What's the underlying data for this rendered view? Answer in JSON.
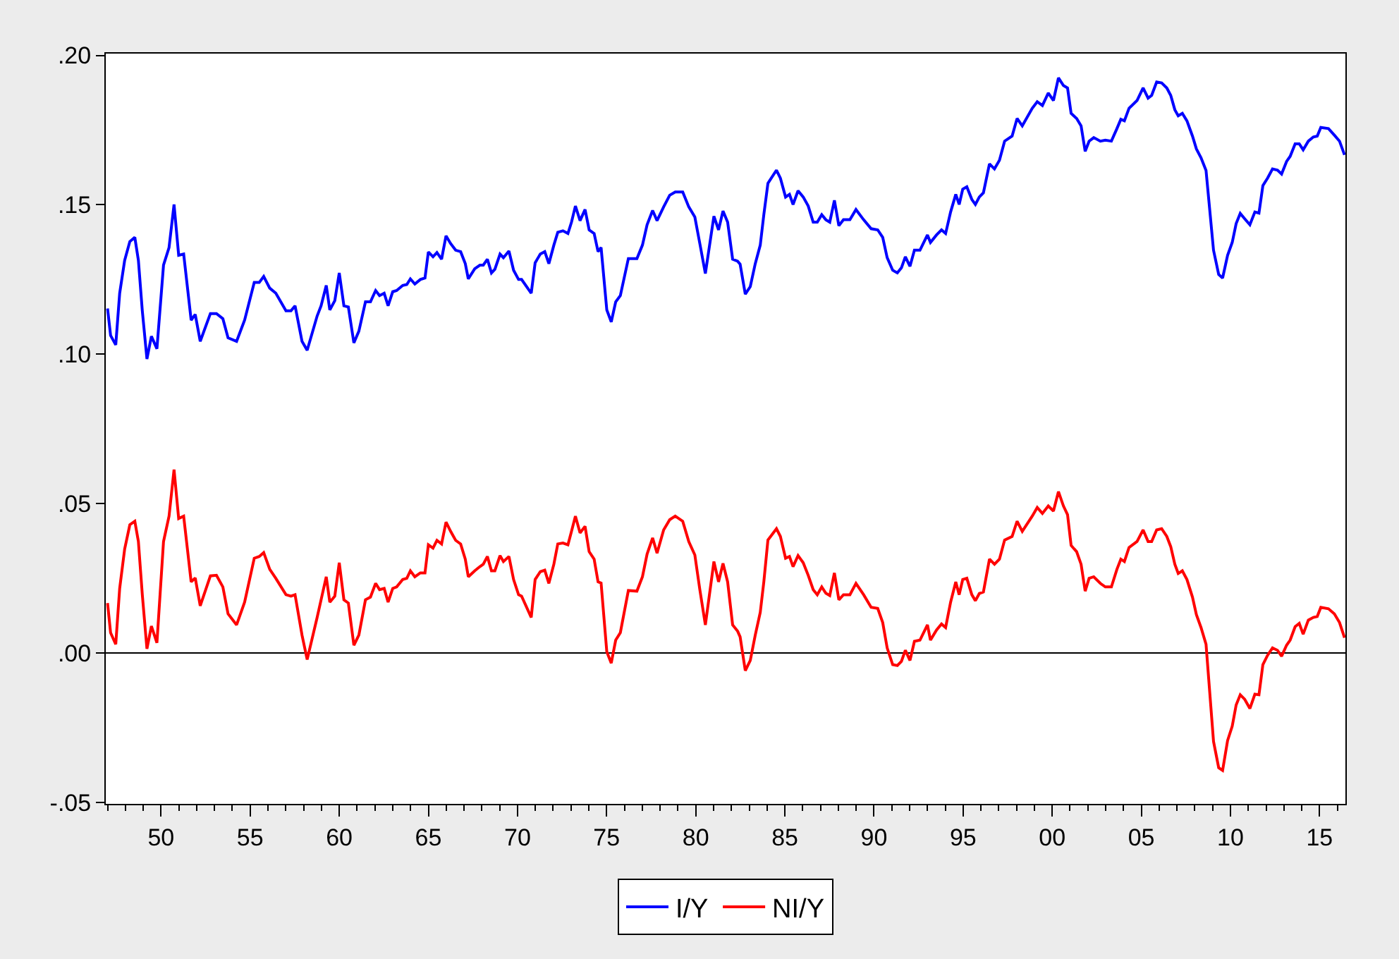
{
  "chart_data": {
    "type": "line",
    "legend": "bottom",
    "grid": false,
    "marker": "none",
    "line_style": "solid",
    "xlim": [
      1946.9,
      2016.45
    ],
    "xticks": [
      {
        "value": 1950,
        "label": "50"
      },
      {
        "value": 1955,
        "label": "55"
      },
      {
        "value": 1960,
        "label": "60"
      },
      {
        "value": 1965,
        "label": "65"
      },
      {
        "value": 1970,
        "label": "70"
      },
      {
        "value": 1975,
        "label": "75"
      },
      {
        "value": 1980,
        "label": "80"
      },
      {
        "value": 1985,
        "label": "85"
      },
      {
        "value": 1990,
        "label": "90"
      },
      {
        "value": 1995,
        "label": "95"
      },
      {
        "value": 2000,
        "label": "00"
      },
      {
        "value": 2005,
        "label": "05"
      },
      {
        "value": 2010,
        "label": "10"
      },
      {
        "value": 2015,
        "label": "15"
      }
    ],
    "ylim": [
      -0.0505,
      0.2006
    ],
    "yticks": [
      {
        "value": -0.05,
        "label": "-.05"
      },
      {
        "value": 0,
        "label": ".00"
      },
      {
        "value": 0.05,
        "label": ".05"
      },
      {
        "value": 0.1,
        "label": ".10"
      },
      {
        "value": 0.15,
        "label": ".15"
      },
      {
        "value": 0.2,
        "label": ".20"
      }
    ],
    "ref_lines": [
      {
        "axis": "y",
        "value": 0,
        "color": "#000000"
      }
    ],
    "x": [
      1947.0,
      1947.17,
      1947.46,
      1947.68,
      1947.96,
      1948.25,
      1948.53,
      1948.73,
      1948.95,
      1949.21,
      1949.46,
      1949.77,
      1950.14,
      1950.45,
      1950.73,
      1950.99,
      1951.27,
      1951.69,
      1951.92,
      1952.2,
      1952.77,
      1953.11,
      1953.47,
      1953.76,
      1954.24,
      1954.69,
      1955.23,
      1955.51,
      1955.76,
      1956.1,
      1956.44,
      1957.01,
      1957.29,
      1957.52,
      1957.91,
      1958.2,
      1958.76,
      1958.98,
      1959.27,
      1959.47,
      1959.75,
      1960.0,
      1960.26,
      1960.51,
      1960.82,
      1961.1,
      1961.47,
      1961.75,
      1962.04,
      1962.26,
      1962.52,
      1962.74,
      1963.0,
      1963.22,
      1963.56,
      1963.79,
      1963.99,
      1964.24,
      1964.55,
      1964.81,
      1965.0,
      1965.26,
      1965.48,
      1965.74,
      1965.99,
      1966.25,
      1966.53,
      1966.81,
      1967.07,
      1967.24,
      1967.6,
      1967.89,
      1968.08,
      1968.31,
      1968.54,
      1968.73,
      1969.02,
      1969.21,
      1969.52,
      1969.78,
      1970.06,
      1970.23,
      1970.77,
      1970.99,
      1971.28,
      1971.53,
      1971.76,
      1972.04,
      1972.26,
      1972.55,
      1972.83,
      1973.03,
      1973.25,
      1973.51,
      1973.79,
      1974.02,
      1974.3,
      1974.52,
      1974.69,
      1975.01,
      1975.26,
      1975.51,
      1975.77,
      1976.22,
      1976.7,
      1977.01,
      1977.27,
      1977.58,
      1977.83,
      1978.2,
      1978.54,
      1978.85,
      1979.27,
      1979.61,
      1979.95,
      1980.23,
      1980.54,
      1981.02,
      1981.28,
      1981.53,
      1981.79,
      1982.07,
      1982.35,
      1982.49,
      1982.78,
      1983.06,
      1983.34,
      1983.62,
      1983.82,
      1984.05,
      1984.53,
      1984.75,
      1985.04,
      1985.26,
      1985.46,
      1985.74,
      1986.03,
      1986.31,
      1986.59,
      1986.82,
      1987.07,
      1987.3,
      1987.52,
      1987.78,
      1988.03,
      1988.29,
      1988.65,
      1988.99,
      1989.42,
      1989.84,
      1990.21,
      1990.49,
      1990.74,
      1991.05,
      1991.31,
      1991.54,
      1991.76,
      1992.02,
      1992.27,
      1992.58,
      1993.0,
      1993.17,
      1993.51,
      1993.79,
      1994.02,
      1994.3,
      1994.59,
      1994.78,
      1994.98,
      1995.21,
      1995.49,
      1995.69,
      1995.91,
      1996.14,
      1996.48,
      1996.76,
      1997.04,
      1997.33,
      1997.75,
      1998.03,
      1998.32,
      1998.88,
      1999.16,
      1999.45,
      1999.78,
      2000.07,
      2000.35,
      2000.63,
      2000.86,
      2001.06,
      2001.37,
      2001.62,
      2001.85,
      2002.07,
      2002.33,
      2002.7,
      2002.98,
      2003.32,
      2003.63,
      2003.85,
      2004.05,
      2004.31,
      2004.76,
      2005.1,
      2005.38,
      2005.58,
      2005.86,
      2006.14,
      2006.43,
      2006.65,
      2006.88,
      2007.07,
      2007.3,
      2007.56,
      2007.87,
      2008.09,
      2008.35,
      2008.63,
      2009.05,
      2009.34,
      2009.56,
      2009.84,
      2010.1,
      2010.32,
      2010.55,
      2010.8,
      2011.09,
      2011.37,
      2011.6,
      2011.82,
      2012.08,
      2012.36,
      2012.64,
      2012.87,
      2013.15,
      2013.35,
      2013.63,
      2013.86,
      2014.08,
      2014.37,
      2014.65,
      2014.87,
      2015.07,
      2015.5,
      2015.83,
      2016.12,
      2016.4
    ],
    "series": [
      {
        "name": "I/Y",
        "color": "#0000ff",
        "values": [
          0.1153,
          0.1063,
          0.1031,
          0.1204,
          0.1314,
          0.1377,
          0.1391,
          0.1314,
          0.1145,
          0.0984,
          0.106,
          0.1018,
          0.1298,
          0.1357,
          0.1501,
          0.1331,
          0.1335,
          0.1114,
          0.1133,
          0.1043,
          0.1136,
          0.1136,
          0.1119,
          0.1055,
          0.1043,
          0.1114,
          0.124,
          0.124,
          0.126,
          0.1221,
          0.1204,
          0.1145,
          0.1145,
          0.1162,
          0.1043,
          0.1013,
          0.1128,
          0.1162,
          0.123,
          0.1148,
          0.1179,
          0.1272,
          0.1162,
          0.1158,
          0.1038,
          0.1077,
          0.1175,
          0.1175,
          0.1213,
          0.1196,
          0.1204,
          0.1162,
          0.1209,
          0.1213,
          0.123,
          0.1233,
          0.1252,
          0.1235,
          0.125,
          0.1255,
          0.1342,
          0.1326,
          0.134,
          0.1318,
          0.1396,
          0.137,
          0.1348,
          0.1343,
          0.1303,
          0.1252,
          0.1286,
          0.1298,
          0.1298,
          0.1318,
          0.1272,
          0.1284,
          0.1335,
          0.1323,
          0.1345,
          0.1281,
          0.125,
          0.125,
          0.1204,
          0.1306,
          0.1335,
          0.1343,
          0.1303,
          0.1365,
          0.1408,
          0.1413,
          0.1404,
          0.1442,
          0.1496,
          0.1447,
          0.1484,
          0.1416,
          0.1404,
          0.1343,
          0.1357,
          0.1148,
          0.1108,
          0.1175,
          0.1196,
          0.132,
          0.132,
          0.1365,
          0.1433,
          0.1481,
          0.1447,
          0.1493,
          0.1532,
          0.1543,
          0.1543,
          0.1493,
          0.1459,
          0.137,
          0.127,
          0.1462,
          0.1416,
          0.1479,
          0.1442,
          0.1318,
          0.1311,
          0.1301,
          0.1201,
          0.1226,
          0.1303,
          0.1365,
          0.1467,
          0.1572,
          0.1616,
          0.1589,
          0.1526,
          0.1535,
          0.1501,
          0.1547,
          0.1526,
          0.1496,
          0.1442,
          0.1442,
          0.1467,
          0.145,
          0.1442,
          0.1515,
          0.143,
          0.145,
          0.145,
          0.1484,
          0.145,
          0.142,
          0.1416,
          0.1391,
          0.1323,
          0.1281,
          0.1272,
          0.1289,
          0.1326,
          0.1294,
          0.1348,
          0.1348,
          0.1399,
          0.1374,
          0.1399,
          0.1416,
          0.1404,
          0.1476,
          0.1535,
          0.1501,
          0.1552,
          0.156,
          0.1518,
          0.1501,
          0.1526,
          0.154,
          0.1637,
          0.162,
          0.1649,
          0.1713,
          0.173,
          0.1789,
          0.1764,
          0.1823,
          0.1845,
          0.1832,
          0.1874,
          0.1849,
          0.1925,
          0.1899,
          0.1891,
          0.1806,
          0.1789,
          0.1764,
          0.1679,
          0.1713,
          0.1725,
          0.1713,
          0.1716,
          0.1713,
          0.1755,
          0.1786,
          0.1781,
          0.1823,
          0.1849,
          0.1891,
          0.1857,
          0.1866,
          0.1911,
          0.1908,
          0.1891,
          0.1866,
          0.1818,
          0.1798,
          0.1806,
          0.1781,
          0.173,
          0.1687,
          0.1657,
          0.1615,
          0.1348,
          0.1267,
          0.1255,
          0.1331,
          0.1374,
          0.1437,
          0.1471,
          0.1453,
          0.1433,
          0.1476,
          0.1472,
          0.1564,
          0.1589,
          0.162,
          0.1616,
          0.1603,
          0.1645,
          0.1662,
          0.1704,
          0.1704,
          0.1684,
          0.1713,
          0.1727,
          0.173,
          0.1759,
          0.1755,
          0.1733,
          0.1713,
          0.1667
        ]
      },
      {
        "name": "NI/Y",
        "color": "#ff0000",
        "values": [
          0.0167,
          0.0068,
          0.0029,
          0.0216,
          0.0348,
          0.0429,
          0.0441,
          0.0373,
          0.0195,
          0.0014,
          0.009,
          0.0034,
          0.0373,
          0.0458,
          0.0614,
          0.045,
          0.0458,
          0.0238,
          0.0251,
          0.0158,
          0.0258,
          0.026,
          0.0221,
          0.0131,
          0.0094,
          0.017,
          0.0317,
          0.0323,
          0.0336,
          0.028,
          0.025,
          0.0195,
          0.019,
          0.0195,
          0.006,
          -0.0022,
          0.0119,
          0.0178,
          0.0255,
          0.017,
          0.019,
          0.0302,
          0.0178,
          0.0167,
          0.0026,
          0.006,
          0.0178,
          0.0187,
          0.0233,
          0.0212,
          0.0216,
          0.017,
          0.0216,
          0.0221,
          0.0246,
          0.025,
          0.0275,
          0.0255,
          0.0268,
          0.0268,
          0.0362,
          0.0351,
          0.0377,
          0.0365,
          0.0438,
          0.0407,
          0.0377,
          0.0365,
          0.0314,
          0.0255,
          0.0275,
          0.0289,
          0.0297,
          0.0323,
          0.0275,
          0.0275,
          0.0326,
          0.0306,
          0.0323,
          0.0246,
          0.0195,
          0.019,
          0.0119,
          0.0246,
          0.0272,
          0.0277,
          0.0233,
          0.0297,
          0.0365,
          0.0368,
          0.0362,
          0.0407,
          0.0458,
          0.0402,
          0.0424,
          0.0339,
          0.0314,
          0.0238,
          0.0234,
          0.0004,
          -0.0034,
          0.0043,
          0.0068,
          0.0209,
          0.0207,
          0.0255,
          0.0331,
          0.0385,
          0.0334,
          0.0412,
          0.0446,
          0.0458,
          0.0441,
          0.0373,
          0.0328,
          0.0212,
          0.0094,
          0.0306,
          0.0238,
          0.03,
          0.0238,
          0.0094,
          0.0073,
          0.0054,
          -0.0059,
          -0.0025,
          0.006,
          0.0136,
          0.0238,
          0.0378,
          0.0416,
          0.039,
          0.0317,
          0.0323,
          0.0289,
          0.0326,
          0.0302,
          0.026,
          0.0212,
          0.0195,
          0.0221,
          0.02,
          0.0192,
          0.0268,
          0.0178,
          0.0195,
          0.0195,
          0.0233,
          0.0195,
          0.0153,
          0.0149,
          0.0102,
          0.0017,
          -0.0039,
          -0.0042,
          -0.0028,
          0.0009,
          -0.0025,
          0.0039,
          0.0043,
          0.0094,
          0.0043,
          0.0077,
          0.0097,
          0.0085,
          0.017,
          0.0238,
          0.0195,
          0.0246,
          0.025,
          0.0195,
          0.0175,
          0.0199,
          0.0204,
          0.0314,
          0.0297,
          0.0314,
          0.0378,
          0.039,
          0.0441,
          0.0407,
          0.0458,
          0.0487,
          0.0467,
          0.0492,
          0.0475,
          0.054,
          0.0492,
          0.0463,
          0.036,
          0.0339,
          0.0297,
          0.0207,
          0.025,
          0.0255,
          0.0233,
          0.0221,
          0.0221,
          0.028,
          0.0314,
          0.0306,
          0.0353,
          0.0373,
          0.0412,
          0.0373,
          0.0373,
          0.0412,
          0.0416,
          0.039,
          0.0356,
          0.0297,
          0.0266,
          0.0275,
          0.0246,
          0.0187,
          0.0128,
          0.0085,
          0.0029,
          -0.0296,
          -0.0384,
          -0.0393,
          -0.0293,
          -0.0245,
          -0.0174,
          -0.014,
          -0.0155,
          -0.0186,
          -0.0138,
          -0.014,
          -0.0039,
          -0.0008,
          0.0017,
          0.0009,
          -0.0011,
          0.0026,
          0.0043,
          0.0088,
          0.0099,
          0.0063,
          0.011,
          0.0119,
          0.0122,
          0.0153,
          0.0148,
          0.0131,
          0.0102,
          0.0051
        ]
      }
    ]
  }
}
